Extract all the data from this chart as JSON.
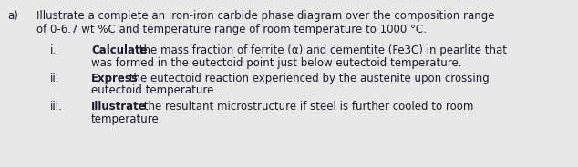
{
  "bg_color": "#e8e8e8",
  "text_color": "#1a1a2e",
  "font_size": 8.5,
  "part_a_label": "a)",
  "part_a_line1": "Illustrate a complete an iron-iron carbide phase diagram over the composition range",
  "part_a_line2": "of 0-6.7 wt %C and temperature range of room temperature to 1000 °C.",
  "items": [
    {
      "label": "i.",
      "bold": "Calculate",
      "line1_rest": " the mass fraction of ferrite (α) and cementite (Fe3C) in pearlite that",
      "line2": "was formed in the eutectoid point just below eutectoid temperature."
    },
    {
      "label": "ii.",
      "bold": "Express",
      "line1_rest": " the eutectoid reaction experienced by the austenite upon crossing",
      "line2": "eutectoid temperature."
    },
    {
      "label": "iii.",
      "bold": "Illustrate",
      "line1_rest": " the resultant microstructure if steel is further cooled to room",
      "line2": "temperature."
    }
  ]
}
